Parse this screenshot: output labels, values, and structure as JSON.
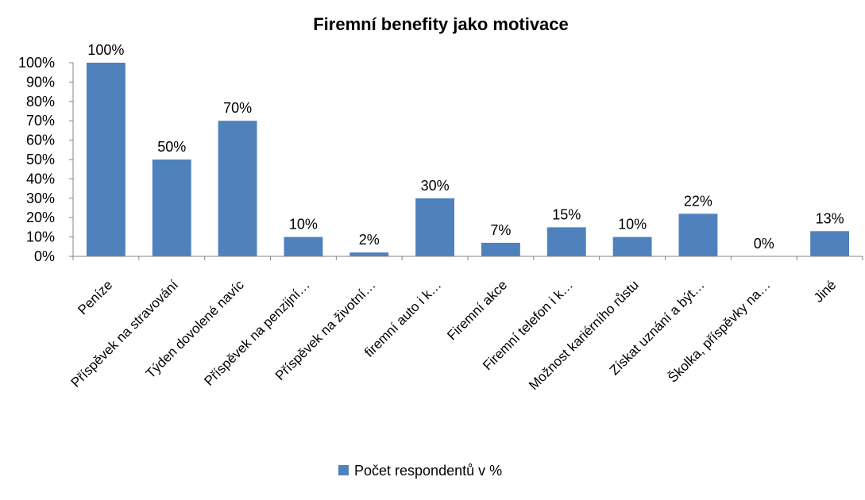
{
  "chart_data": {
    "type": "bar",
    "title": "Firemní benefity jako motivace",
    "xlabel": "",
    "ylabel": "",
    "ylim": [
      0,
      100
    ],
    "yticks": [
      0,
      10,
      20,
      30,
      40,
      50,
      60,
      70,
      80,
      90,
      100
    ],
    "ytick_labels": [
      "0%",
      "10%",
      "20%",
      "30%",
      "40%",
      "50%",
      "60%",
      "70%",
      "80%",
      "90%",
      "100%"
    ],
    "categories": [
      "Peníze",
      "Příspěvek na stravování",
      "Týden dovolené navíc",
      "Příspěvek na penzijní…",
      "Příspěvek na životní…",
      "firemní auto i k…",
      "Firemní akce",
      "Firemní telefon i k…",
      "Možnost kariérního růstu",
      "Získat uznání a být…",
      "Školka, příspěvky na…",
      "Jiné"
    ],
    "series": [
      {
        "name": "Počet respondentů v %",
        "color": "#4F81BD",
        "values": [
          100,
          50,
          70,
          10,
          2,
          30,
          7,
          15,
          10,
          22,
          0,
          13
        ],
        "labels": [
          "100%",
          "50%",
          "70%",
          "10%",
          "2%",
          "30%",
          "7%",
          "15%",
          "10%",
          "22%",
          "0%",
          "13%"
        ]
      }
    ],
    "grid": false,
    "legend": "bottom"
  }
}
